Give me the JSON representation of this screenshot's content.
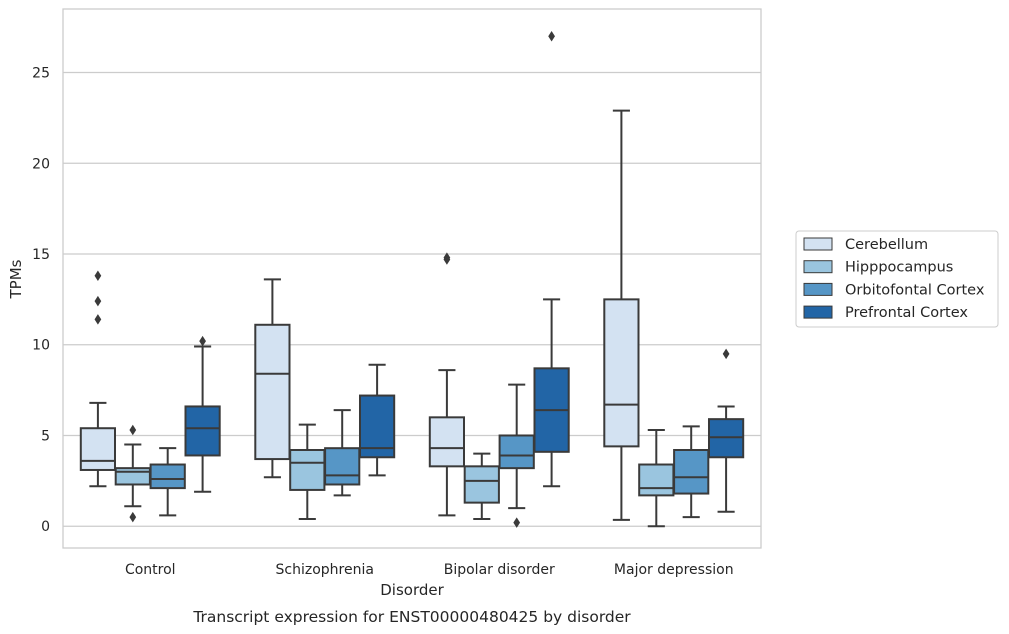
{
  "chart_data": {
    "type": "boxplot",
    "title": "",
    "caption": "Transcript expression for ENST00000480425 by disorder",
    "xlabel": "Disorder",
    "ylabel": "TPMs",
    "ylim": [
      -1.2,
      28.5
    ],
    "yticks": [
      "0",
      "5",
      "10",
      "15",
      "20",
      "25"
    ],
    "grid": "horizontal",
    "legend_position": "right",
    "categories": [
      "Control",
      "Schizophrenia",
      "Bipolar disorder",
      "Major depression"
    ],
    "series": [
      {
        "name": "Cerebellum",
        "color": "#d3e2f2",
        "boxes": [
          {
            "whislo": 2.2,
            "q1": 3.1,
            "med": 3.6,
            "q3": 5.4,
            "whishi": 6.8,
            "fliers": [
              11.4,
              12.4,
              13.8
            ]
          },
          {
            "whislo": 2.7,
            "q1": 3.7,
            "med": 8.4,
            "q3": 11.1,
            "whishi": 13.6,
            "fliers": []
          },
          {
            "whislo": 0.6,
            "q1": 3.3,
            "med": 4.3,
            "q3": 6.0,
            "whishi": 8.6,
            "fliers": [
              14.7,
              14.8
            ]
          },
          {
            "whislo": 0.35,
            "q1": 4.4,
            "med": 6.7,
            "q3": 12.5,
            "whishi": 22.9,
            "fliers": []
          }
        ]
      },
      {
        "name": "Hipppocampus",
        "color": "#9ac5df",
        "boxes": [
          {
            "whislo": 1.1,
            "q1": 2.3,
            "med": 3.0,
            "q3": 3.2,
            "whishi": 4.5,
            "fliers": [
              0.5,
              5.3
            ]
          },
          {
            "whislo": 0.4,
            "q1": 2.0,
            "med": 3.5,
            "q3": 4.2,
            "whishi": 5.6,
            "fliers": []
          },
          {
            "whislo": 0.4,
            "q1": 1.3,
            "med": 2.5,
            "q3": 3.3,
            "whishi": 4.0,
            "fliers": []
          },
          {
            "whislo": 0.0,
            "q1": 1.7,
            "med": 2.1,
            "q3": 3.4,
            "whishi": 5.3,
            "fliers": []
          }
        ]
      },
      {
        "name": "Orbitofontal Cortex",
        "color": "#5696c6",
        "boxes": [
          {
            "whislo": 0.6,
            "q1": 2.1,
            "med": 2.6,
            "q3": 3.4,
            "whishi": 4.3,
            "fliers": []
          },
          {
            "whislo": 1.7,
            "q1": 2.3,
            "med": 2.8,
            "q3": 4.3,
            "whishi": 6.4,
            "fliers": []
          },
          {
            "whislo": 1.0,
            "q1": 3.2,
            "med": 3.9,
            "q3": 5.0,
            "whishi": 7.8,
            "fliers": [
              0.2
            ]
          },
          {
            "whislo": 0.5,
            "q1": 1.8,
            "med": 2.7,
            "q3": 4.2,
            "whishi": 5.5,
            "fliers": []
          }
        ]
      },
      {
        "name": "Prefrontal Cortex",
        "color": "#2265a6",
        "boxes": [
          {
            "whislo": 1.9,
            "q1": 3.9,
            "med": 5.4,
            "q3": 6.6,
            "whishi": 9.9,
            "fliers": [
              10.2
            ]
          },
          {
            "whislo": 2.8,
            "q1": 3.8,
            "med": 4.3,
            "q3": 7.2,
            "whishi": 8.9,
            "fliers": []
          },
          {
            "whislo": 2.2,
            "q1": 4.1,
            "med": 6.4,
            "q3": 8.7,
            "whishi": 12.5,
            "fliers": [
              27.0
            ]
          },
          {
            "whislo": 0.8,
            "q1": 3.8,
            "med": 4.9,
            "q3": 5.9,
            "whishi": 6.6,
            "fliers": [
              9.5
            ]
          }
        ]
      }
    ]
  }
}
